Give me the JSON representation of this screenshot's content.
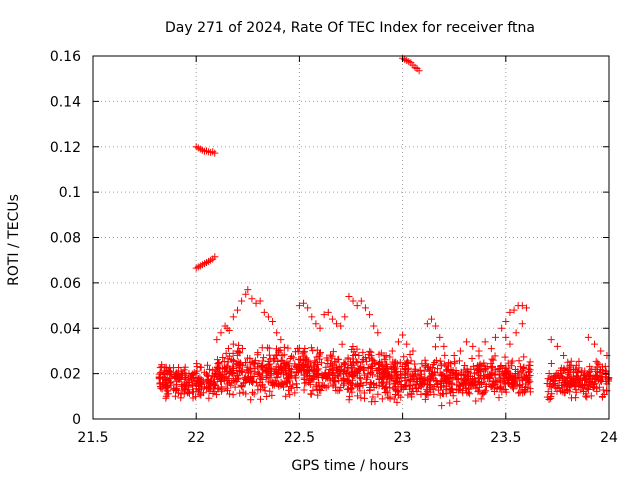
{
  "chart_data": {
    "type": "scatter",
    "title": "Day 271 of 2024, Rate Of TEC Index for receiver ftna",
    "xlabel": "GPS time / hours",
    "ylabel": "ROTI / TECUs",
    "xlim": [
      21.5,
      24
    ],
    "ylim": [
      0,
      0.16
    ],
    "xticks": [
      21.5,
      22,
      22.5,
      23,
      23.5,
      24
    ],
    "xtick_labels": [
      "21.5",
      "22",
      "22.5",
      "23",
      "23.5",
      "24"
    ],
    "yticks": [
      0,
      0.02,
      0.04,
      0.06,
      0.08,
      0.1,
      0.12,
      0.14,
      0.16
    ],
    "ytick_labels": [
      "0",
      "0.02",
      "0.04",
      "0.06",
      "0.08",
      "0.1",
      "0.12",
      "0.14",
      "0.16"
    ],
    "grid": true,
    "marker": "+",
    "series": [
      {
        "name": "ROTI",
        "color": "#ff0000",
        "points": [
          [
            22.0,
            0.12
          ],
          [
            22.01,
            0.1195
          ],
          [
            22.02,
            0.119
          ],
          [
            22.03,
            0.1185
          ],
          [
            22.04,
            0.118
          ],
          [
            22.05,
            0.1182
          ],
          [
            22.06,
            0.1178
          ],
          [
            22.07,
            0.1175
          ],
          [
            22.08,
            0.1178
          ],
          [
            22.09,
            0.1172
          ],
          [
            22.0,
            0.0665
          ],
          [
            22.01,
            0.067
          ],
          [
            22.02,
            0.0675
          ],
          [
            22.03,
            0.068
          ],
          [
            22.04,
            0.0685
          ],
          [
            22.05,
            0.069
          ],
          [
            22.06,
            0.0695
          ],
          [
            22.07,
            0.07
          ],
          [
            22.08,
            0.0705
          ],
          [
            22.09,
            0.0715
          ],
          [
            23.0,
            0.159
          ],
          [
            23.01,
            0.1585
          ],
          [
            23.02,
            0.158
          ],
          [
            23.03,
            0.1575
          ],
          [
            23.04,
            0.157
          ],
          [
            23.05,
            0.156
          ],
          [
            23.06,
            0.155
          ],
          [
            23.07,
            0.1545
          ],
          [
            23.08,
            0.1535
          ],
          [
            22.15,
            0.04
          ],
          [
            22.18,
            0.045
          ],
          [
            22.2,
            0.048
          ],
          [
            22.22,
            0.052
          ],
          [
            22.24,
            0.055
          ],
          [
            22.25,
            0.057
          ],
          [
            22.27,
            0.053
          ],
          [
            22.29,
            0.051
          ],
          [
            22.31,
            0.052
          ],
          [
            22.33,
            0.047
          ],
          [
            22.35,
            0.045
          ],
          [
            22.37,
            0.043
          ],
          [
            22.39,
            0.038
          ],
          [
            22.41,
            0.035
          ],
          [
            22.1,
            0.035
          ],
          [
            22.12,
            0.038
          ],
          [
            22.14,
            0.041
          ],
          [
            22.16,
            0.039
          ],
          [
            22.18,
            0.033
          ],
          [
            22.2,
            0.03
          ],
          [
            22.5,
            0.05
          ],
          [
            22.52,
            0.051
          ],
          [
            22.54,
            0.049
          ],
          [
            22.56,
            0.045
          ],
          [
            22.58,
            0.042
          ],
          [
            22.6,
            0.04
          ],
          [
            22.62,
            0.046
          ],
          [
            22.64,
            0.047
          ],
          [
            22.66,
            0.044
          ],
          [
            22.68,
            0.042
          ],
          [
            22.7,
            0.041
          ],
          [
            22.72,
            0.045
          ],
          [
            22.74,
            0.054
          ],
          [
            22.76,
            0.052
          ],
          [
            22.78,
            0.05
          ],
          [
            22.8,
            0.052
          ],
          [
            22.82,
            0.049
          ],
          [
            22.84,
            0.046
          ],
          [
            22.86,
            0.041
          ],
          [
            22.88,
            0.038
          ],
          [
            22.92,
            0.028
          ],
          [
            22.95,
            0.03
          ],
          [
            22.98,
            0.034
          ],
          [
            23.0,
            0.037
          ],
          [
            23.02,
            0.033
          ],
          [
            23.05,
            0.03
          ],
          [
            23.12,
            0.042
          ],
          [
            23.14,
            0.044
          ],
          [
            23.16,
            0.041
          ],
          [
            23.18,
            0.036
          ],
          [
            23.2,
            0.032
          ],
          [
            23.25,
            0.028
          ],
          [
            23.28,
            0.03
          ],
          [
            23.31,
            0.034
          ],
          [
            23.34,
            0.032
          ],
          [
            23.37,
            0.03
          ],
          [
            23.4,
            0.034
          ],
          [
            23.43,
            0.031
          ],
          [
            23.45,
            0.036
          ],
          [
            23.48,
            0.04
          ],
          [
            23.5,
            0.043
          ],
          [
            23.52,
            0.047
          ],
          [
            23.54,
            0.048
          ],
          [
            23.56,
            0.05
          ],
          [
            23.58,
            0.05
          ],
          [
            23.6,
            0.049
          ],
          [
            23.5,
            0.036
          ],
          [
            23.52,
            0.033
          ],
          [
            23.55,
            0.038
          ],
          [
            23.58,
            0.042
          ],
          [
            23.72,
            0.035
          ],
          [
            23.75,
            0.032
          ],
          [
            23.78,
            0.028
          ],
          [
            23.8,
            0.025
          ],
          [
            23.9,
            0.036
          ],
          [
            23.93,
            0.033
          ],
          [
            23.96,
            0.03
          ],
          [
            23.99,
            0.028
          ]
        ]
      }
    ],
    "noise_clusters": [
      {
        "x": [
          21.82,
          22.1
        ],
        "y": [
          0.006,
          0.028
        ],
        "count": 210
      },
      {
        "x": [
          22.1,
          22.5
        ],
        "y": [
          0.006,
          0.035
        ],
        "count": 320
      },
      {
        "x": [
          22.5,
          22.9
        ],
        "y": [
          0.005,
          0.035
        ],
        "count": 320
      },
      {
        "x": [
          22.9,
          23.3
        ],
        "y": [
          0.004,
          0.032
        ],
        "count": 320
      },
      {
        "x": [
          23.3,
          23.62
        ],
        "y": [
          0.006,
          0.03
        ],
        "count": 250
      },
      {
        "x": [
          23.7,
          24.0
        ],
        "y": [
          0.006,
          0.028
        ],
        "count": 220
      }
    ]
  }
}
